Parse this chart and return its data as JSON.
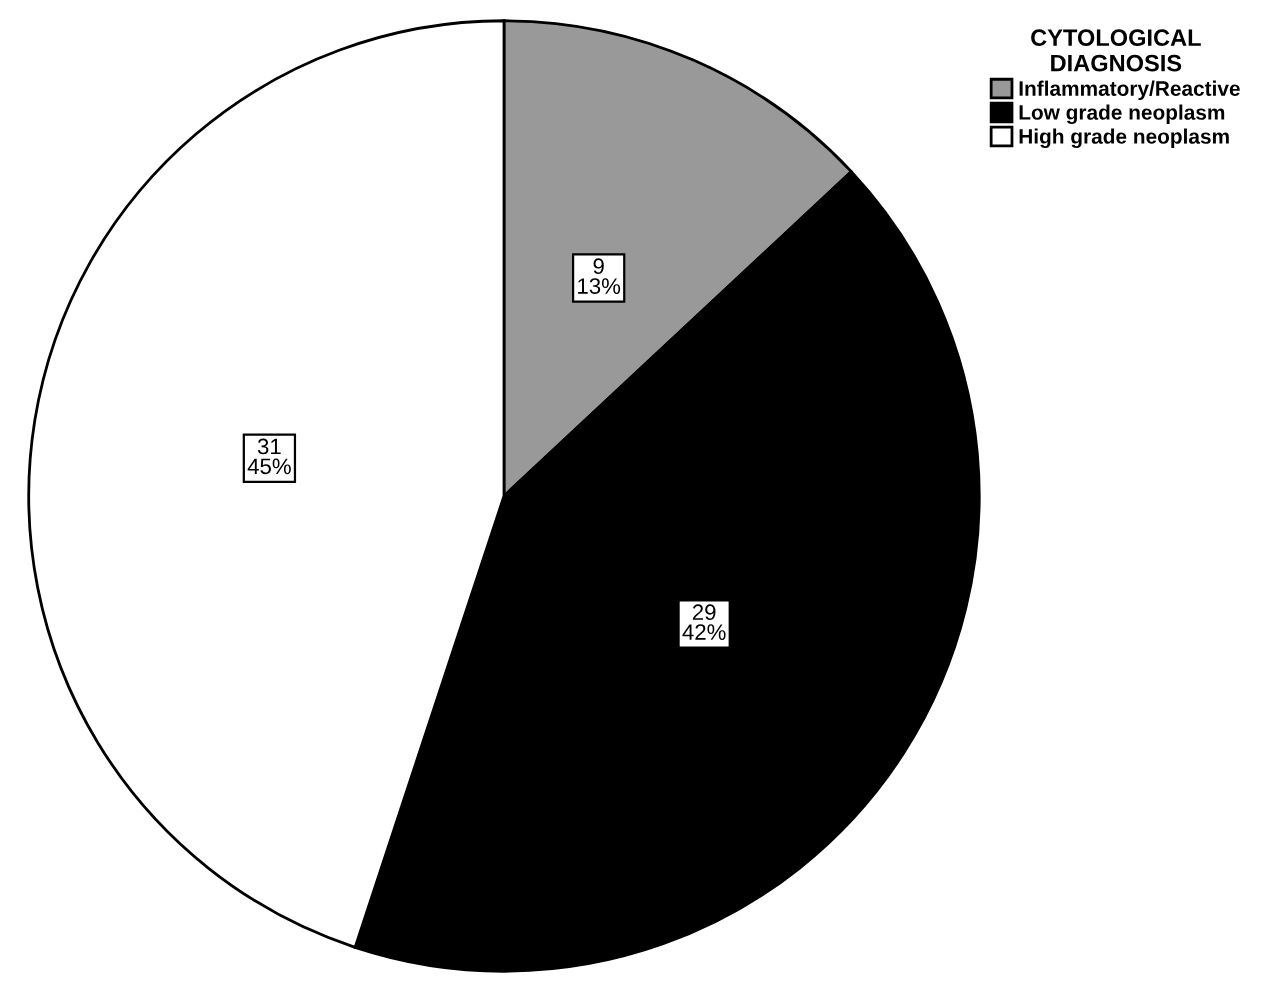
{
  "chart_data": {
    "type": "pie",
    "legend_title": "CYTOLOGICAL\nDIAGNOSIS",
    "categories": [
      "Inflammatory/Reactive",
      "Low grade neoplasm",
      "High grade neoplasm"
    ],
    "values": [
      9,
      29,
      31
    ],
    "colors": [
      "#999999",
      "#000000",
      "#ffffff"
    ],
    "value_labels": [
      "9\n13%",
      "29\n42%",
      "31\n45%"
    ],
    "legend": "top right"
  }
}
